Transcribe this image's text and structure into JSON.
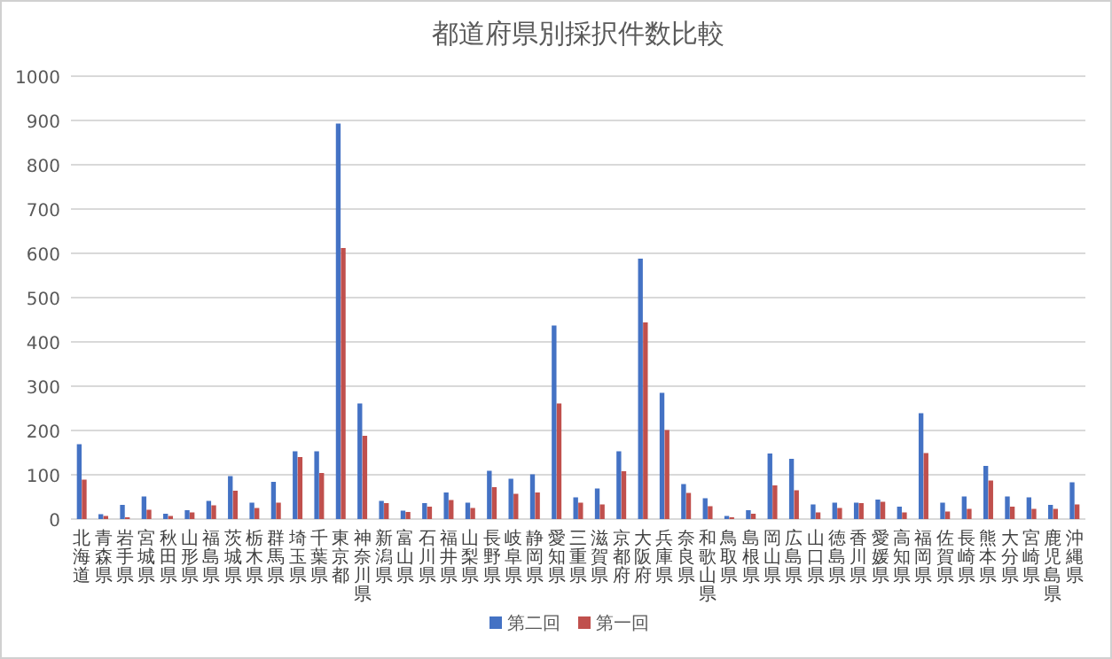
{
  "chart_data": {
    "type": "bar",
    "title": "都道府県別採択件数比較",
    "categories": [
      "北海道",
      "青森県",
      "岩手県",
      "宮城県",
      "秋田県",
      "山形県",
      "福島県",
      "茨城県",
      "栃木県",
      "群馬県",
      "埼玉県",
      "千葉県",
      "東京都",
      "神奈川県",
      "新潟県",
      "富山県",
      "石川県",
      "福井県",
      "山梨県",
      "長野県",
      "岐阜県",
      "静岡県",
      "愛知県",
      "三重県",
      "滋賀県",
      "京都府",
      "大阪府",
      "兵庫県",
      "奈良県",
      "和歌山県",
      "鳥取県",
      "島根県",
      "岡山県",
      "広島県",
      "山口県",
      "徳島県",
      "香川県",
      "愛媛県",
      "高知県",
      "福岡県",
      "佐賀県",
      "長崎県",
      "熊本県",
      "大分県",
      "宮崎県",
      "鹿児島県",
      "沖縄県"
    ],
    "series": [
      {
        "name": "第二回",
        "color": "#4472c4",
        "values": [
          169,
          11,
          32,
          51,
          12,
          20,
          41,
          97,
          37,
          84,
          153,
          153,
          893,
          261,
          41,
          19,
          36,
          60,
          37,
          109,
          91,
          101,
          437,
          49,
          69,
          153,
          588,
          285,
          79,
          47,
          7,
          20,
          148,
          136,
          33,
          37,
          37,
          44,
          28,
          239,
          37,
          51,
          120,
          51,
          49,
          32,
          83
        ]
      },
      {
        "name": "第一回",
        "color": "#c0504d",
        "values": [
          89,
          7,
          4,
          21,
          7,
          15,
          31,
          64,
          25,
          37,
          140,
          104,
          612,
          188,
          36,
          16,
          28,
          43,
          25,
          72,
          57,
          60,
          261,
          37,
          33,
          108,
          444,
          201,
          59,
          29,
          4,
          12,
          76,
          65,
          15,
          25,
          36,
          39,
          15,
          149,
          17,
          23,
          87,
          28,
          23,
          23,
          33
        ]
      }
    ],
    "ylim": [
      0,
      1000
    ],
    "yticks": [
      0,
      100,
      200,
      300,
      400,
      500,
      600,
      700,
      800,
      900,
      1000
    ],
    "grid": "y",
    "legend": "bottom"
  }
}
